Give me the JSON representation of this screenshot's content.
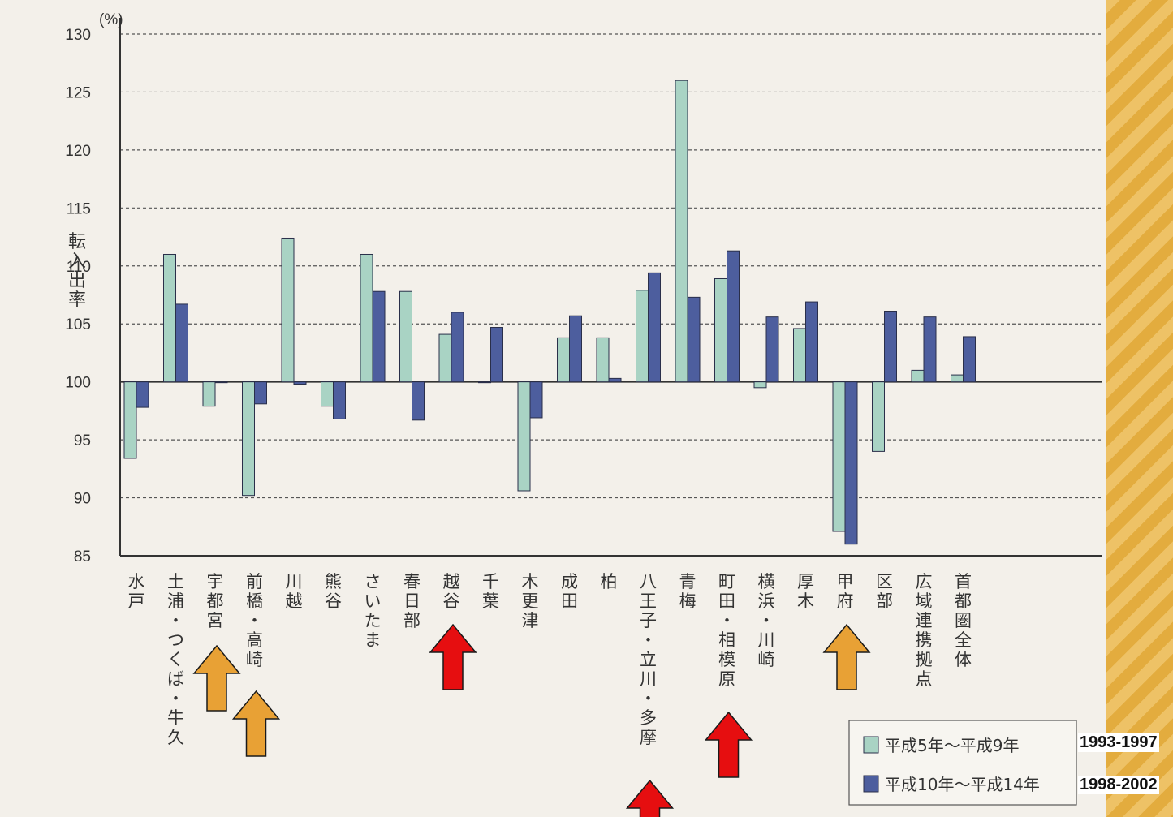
{
  "chart_data": {
    "type": "bar",
    "title": "",
    "unit_label": "(%)",
    "ylabel": "転入出率",
    "ylim": [
      85,
      130
    ],
    "yticks": [
      85,
      90,
      95,
      100,
      105,
      110,
      115,
      120,
      125,
      130
    ],
    "categories": [
      "水戸",
      "土浦・つくば・牛久",
      "宇都宮",
      "前橋・高崎",
      "川越",
      "熊谷",
      "さいたま",
      "春日部",
      "越谷",
      "千葉",
      "木更津",
      "成田",
      "柏",
      "八王子・立川・多摩",
      "青梅",
      "町田・相模原",
      "横浜・川崎",
      "厚木",
      "甲府",
      "区部",
      "広域連携拠点",
      "首都圏全体"
    ],
    "series": [
      {
        "name": "平成5年〜平成9年",
        "color": "#a9d3c4",
        "values": [
          93.4,
          111.0,
          97.9,
          90.2,
          112.4,
          97.9,
          111.0,
          107.8,
          104.1,
          100.0,
          90.6,
          103.8,
          103.8,
          107.9,
          126.0,
          108.9,
          99.5,
          104.6,
          87.1,
          94.0,
          101.0,
          100.6
        ]
      },
      {
        "name": "平成10年〜平成14年",
        "color": "#4d5e9e",
        "values": [
          97.8,
          106.7,
          100.0,
          98.1,
          99.8,
          96.8,
          107.8,
          96.7,
          106.0,
          104.7,
          96.9,
          105.7,
          100.3,
          109.4,
          107.3,
          111.3,
          105.6,
          106.9,
          86.0,
          106.1,
          105.6,
          103.9
        ]
      }
    ],
    "legend": "bottom-right",
    "grid": "dashed horizontal",
    "annotations": {
      "period_labels": [
        "1993-1997",
        "1998-2002"
      ],
      "arrows": [
        {
          "category": "宇都宮",
          "color": "#e8a135"
        },
        {
          "category": "前橋・高崎",
          "color": "#e8a135"
        },
        {
          "category": "越谷",
          "color": "#e60e10"
        },
        {
          "category": "八王子・立川・多摩",
          "color": "#e60e10"
        },
        {
          "category": "町田・相模原",
          "color": "#e60e10"
        },
        {
          "category": "甲府",
          "color": "#e8a135"
        }
      ]
    }
  }
}
